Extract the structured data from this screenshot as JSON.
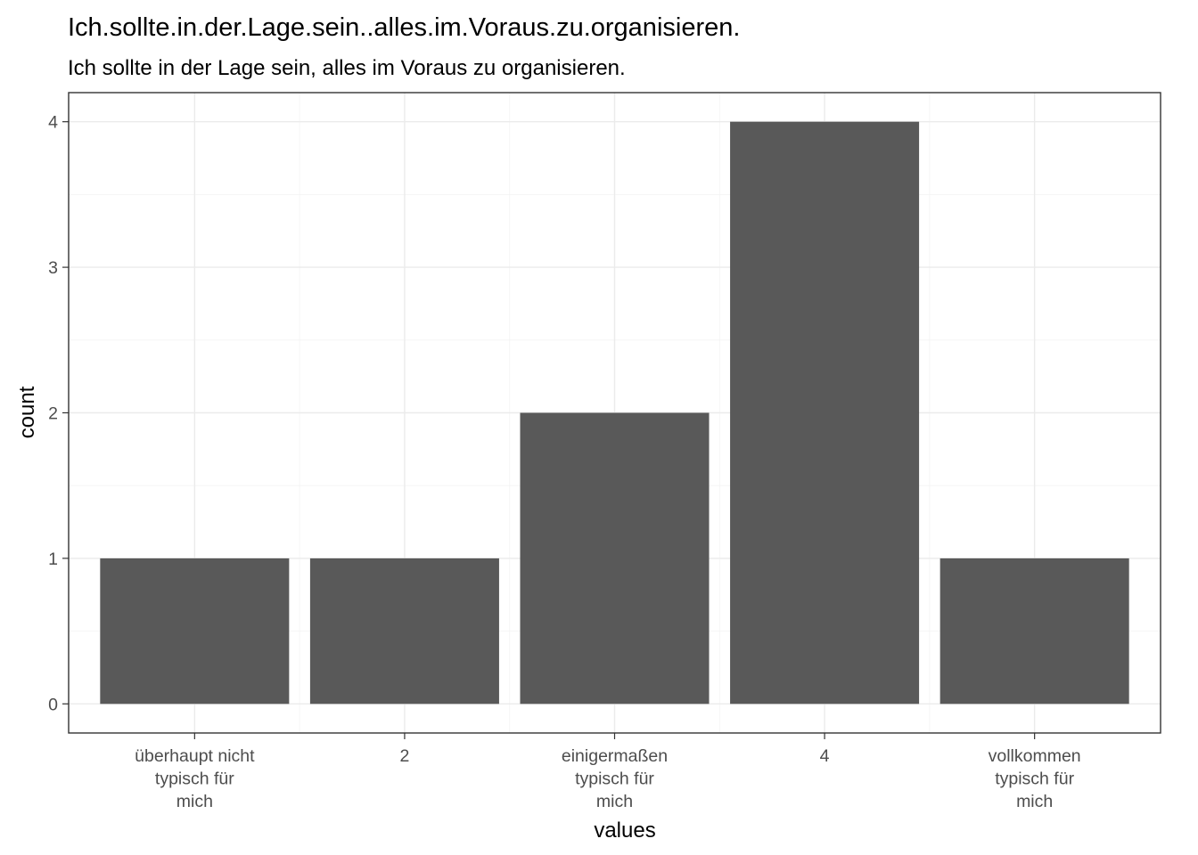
{
  "chart_data": {
    "type": "bar",
    "title": "Ich.sollte.in.der.Lage.sein..alles.im.Voraus.zu.organisieren.",
    "subtitle": "Ich sollte in der Lage sein, alles im Voraus zu organisieren.",
    "xlabel": "values",
    "ylabel": "count",
    "categories": [
      [
        "überhaupt nicht",
        "typisch für",
        "mich"
      ],
      [
        "2"
      ],
      [
        "einigermaßen",
        "typisch für",
        "mich"
      ],
      [
        "4"
      ],
      [
        "vollkommen",
        "typisch für",
        "mich"
      ]
    ],
    "values": [
      1,
      1,
      2,
      4,
      1
    ],
    "ylim": [
      -0.2,
      4.2
    ],
    "yticks": [
      0,
      1,
      2,
      3,
      4
    ],
    "grid": true,
    "colors": {
      "bar": "#595959",
      "grid": "#ebebeb",
      "border": "#333333"
    }
  }
}
